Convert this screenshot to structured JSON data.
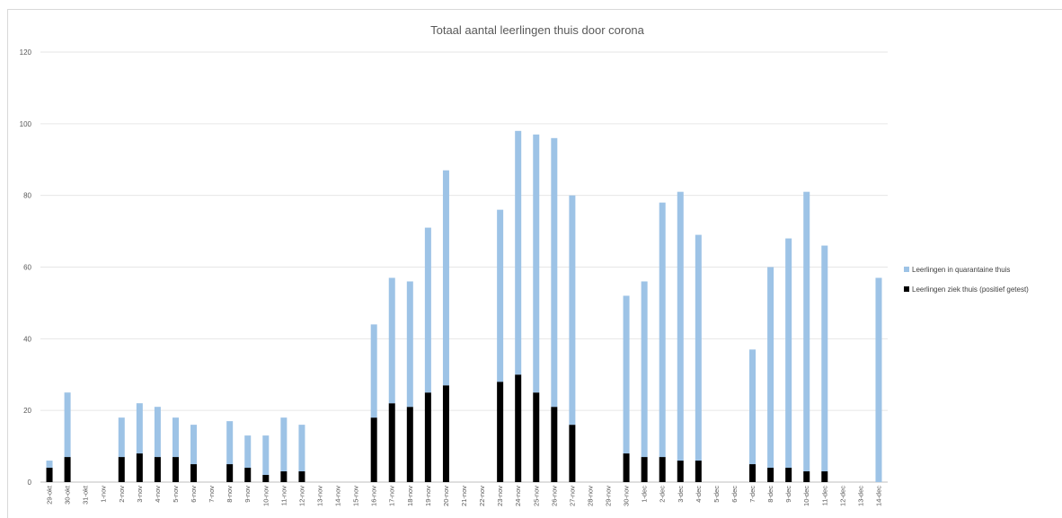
{
  "chart_data": {
    "type": "bar",
    "stacked": true,
    "title": "Totaal aantal leerlingen thuis door corona",
    "xlabel": "",
    "ylabel": "",
    "ylim": [
      0,
      120
    ],
    "yticks": [
      0,
      20,
      40,
      60,
      80,
      100,
      120
    ],
    "grid": true,
    "legend_position": "right",
    "categories": [
      "29-okt",
      "30-okt",
      "31-okt",
      "1-nov",
      "2-nov",
      "3-nov",
      "4-nov",
      "5-nov",
      "6-nov",
      "7-nov",
      "8-nov",
      "9-nov",
      "10-nov",
      "11-nov",
      "12-nov",
      "13-nov",
      "14-nov",
      "15-nov",
      "16-nov",
      "17-nov",
      "18-nov",
      "19-nov",
      "20-nov",
      "21-nov",
      "22-nov",
      "23-nov",
      "24-nov",
      "25-nov",
      "26-nov",
      "27-nov",
      "28-nov",
      "29-nov",
      "30-nov",
      "1-dec",
      "2-dec",
      "3-dec",
      "4-dec",
      "5-dec",
      "6-dec",
      "7-dec",
      "8-dec",
      "9-dec",
      "10-dec",
      "11-dec",
      "12-dec",
      "13-dec",
      "14-dec"
    ],
    "series": [
      {
        "name": "Leerlingen ziek thuis (positief getest)",
        "color": "#000000",
        "values": [
          4,
          7,
          0,
          0,
          7,
          8,
          7,
          7,
          5,
          0,
          5,
          4,
          2,
          3,
          3,
          0,
          0,
          0,
          18,
          22,
          21,
          25,
          27,
          0,
          0,
          28,
          30,
          25,
          21,
          16,
          0,
          0,
          8,
          7,
          7,
          6,
          6,
          0,
          0,
          5,
          4,
          4,
          3,
          3,
          0,
          0,
          0
        ]
      },
      {
        "name": "Leerlingen in quarantaine thuis",
        "color": "#9dc3e6",
        "values": [
          2,
          18,
          0,
          0,
          11,
          14,
          14,
          11,
          11,
          0,
          12,
          9,
          11,
          15,
          13,
          0,
          0,
          0,
          26,
          35,
          35,
          46,
          60,
          0,
          0,
          48,
          68,
          72,
          75,
          64,
          0,
          0,
          44,
          49,
          71,
          75,
          63,
          0,
          0,
          32,
          56,
          64,
          78,
          63,
          0,
          0,
          57
        ]
      }
    ]
  }
}
